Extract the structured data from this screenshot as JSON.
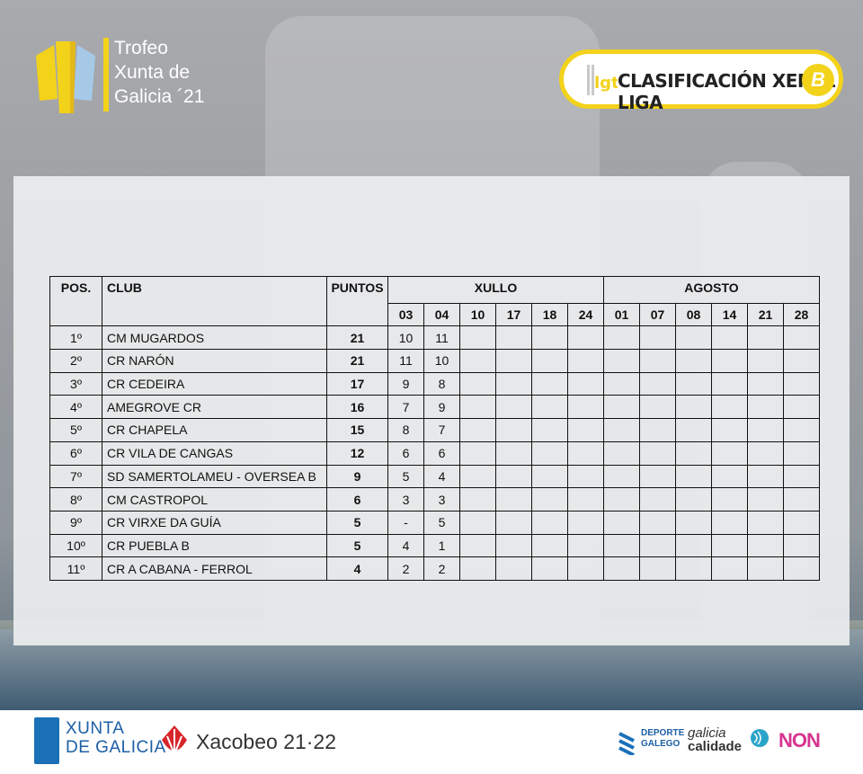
{
  "header": {
    "trophy_lines": [
      "Trofeo",
      "Xunta de",
      "Galicia ´21"
    ],
    "badge_title": "CLASIFICACIÓN XERAL LIGA",
    "badge_letter": "B"
  },
  "table": {
    "headers": {
      "pos": "POS.",
      "club": "CLUB",
      "points": "PUNTOS",
      "month1": "XULLO",
      "month2": "AGOSTO"
    },
    "days_xullo": [
      "03",
      "04",
      "10",
      "17",
      "18",
      "24"
    ],
    "days_agosto": [
      "01",
      "07",
      "08",
      "14",
      "21",
      "28"
    ],
    "rows": [
      {
        "pos": "1º",
        "club": "CM MUGARDOS",
        "points": "21",
        "r03": "10",
        "r04": "11"
      },
      {
        "pos": "2º",
        "club": "CR NARÓN",
        "points": "21",
        "r03": "11",
        "r04": "10"
      },
      {
        "pos": "3º",
        "club": "CR CEDEIRA",
        "points": "17",
        "r03": "9",
        "r04": "8"
      },
      {
        "pos": "4º",
        "club": "AMEGROVE CR",
        "points": "16",
        "r03": "7",
        "r04": "9"
      },
      {
        "pos": "5º",
        "club": "CR CHAPELA",
        "points": "15",
        "r03": "8",
        "r04": "7"
      },
      {
        "pos": "6º",
        "club": "CR VILA DE CANGAS",
        "points": "12",
        "r03": "6",
        "r04": "6"
      },
      {
        "pos": "7º",
        "club": "SD SAMERTOLAMEU - OVERSEA B",
        "points": "9",
        "r03": "5",
        "r04": "4"
      },
      {
        "pos": "8º",
        "club": "CM CASTROPOL",
        "points": "6",
        "r03": "3",
        "r04": "3"
      },
      {
        "pos": "9º",
        "club": "CR VIRXE DA GUÍA",
        "points": "5",
        "r03": "-",
        "r04": "5"
      },
      {
        "pos": "10º",
        "club": "CR PUEBLA B",
        "points": "5",
        "r03": "4",
        "r04": "1"
      },
      {
        "pos": "11º",
        "club": "CR A CABANA - FERROL",
        "points": "4",
        "r03": "2",
        "r04": "2"
      }
    ]
  },
  "footer": {
    "xunta_lines": [
      "XUNTA",
      "DE GALICIA"
    ],
    "xacobeo": "Xacobeo 21·22",
    "deporte_lines": [
      "DEPORTE",
      "GALEGO"
    ],
    "galicia_calidade_lines": [
      "galicia",
      "calidade"
    ],
    "non": "NON"
  },
  "colors": {
    "accent": "#f3d21a",
    "xunta_blue": "#1b5fa5",
    "non_pink": "#d7358f",
    "xacobeo_red": "#d7262b"
  }
}
